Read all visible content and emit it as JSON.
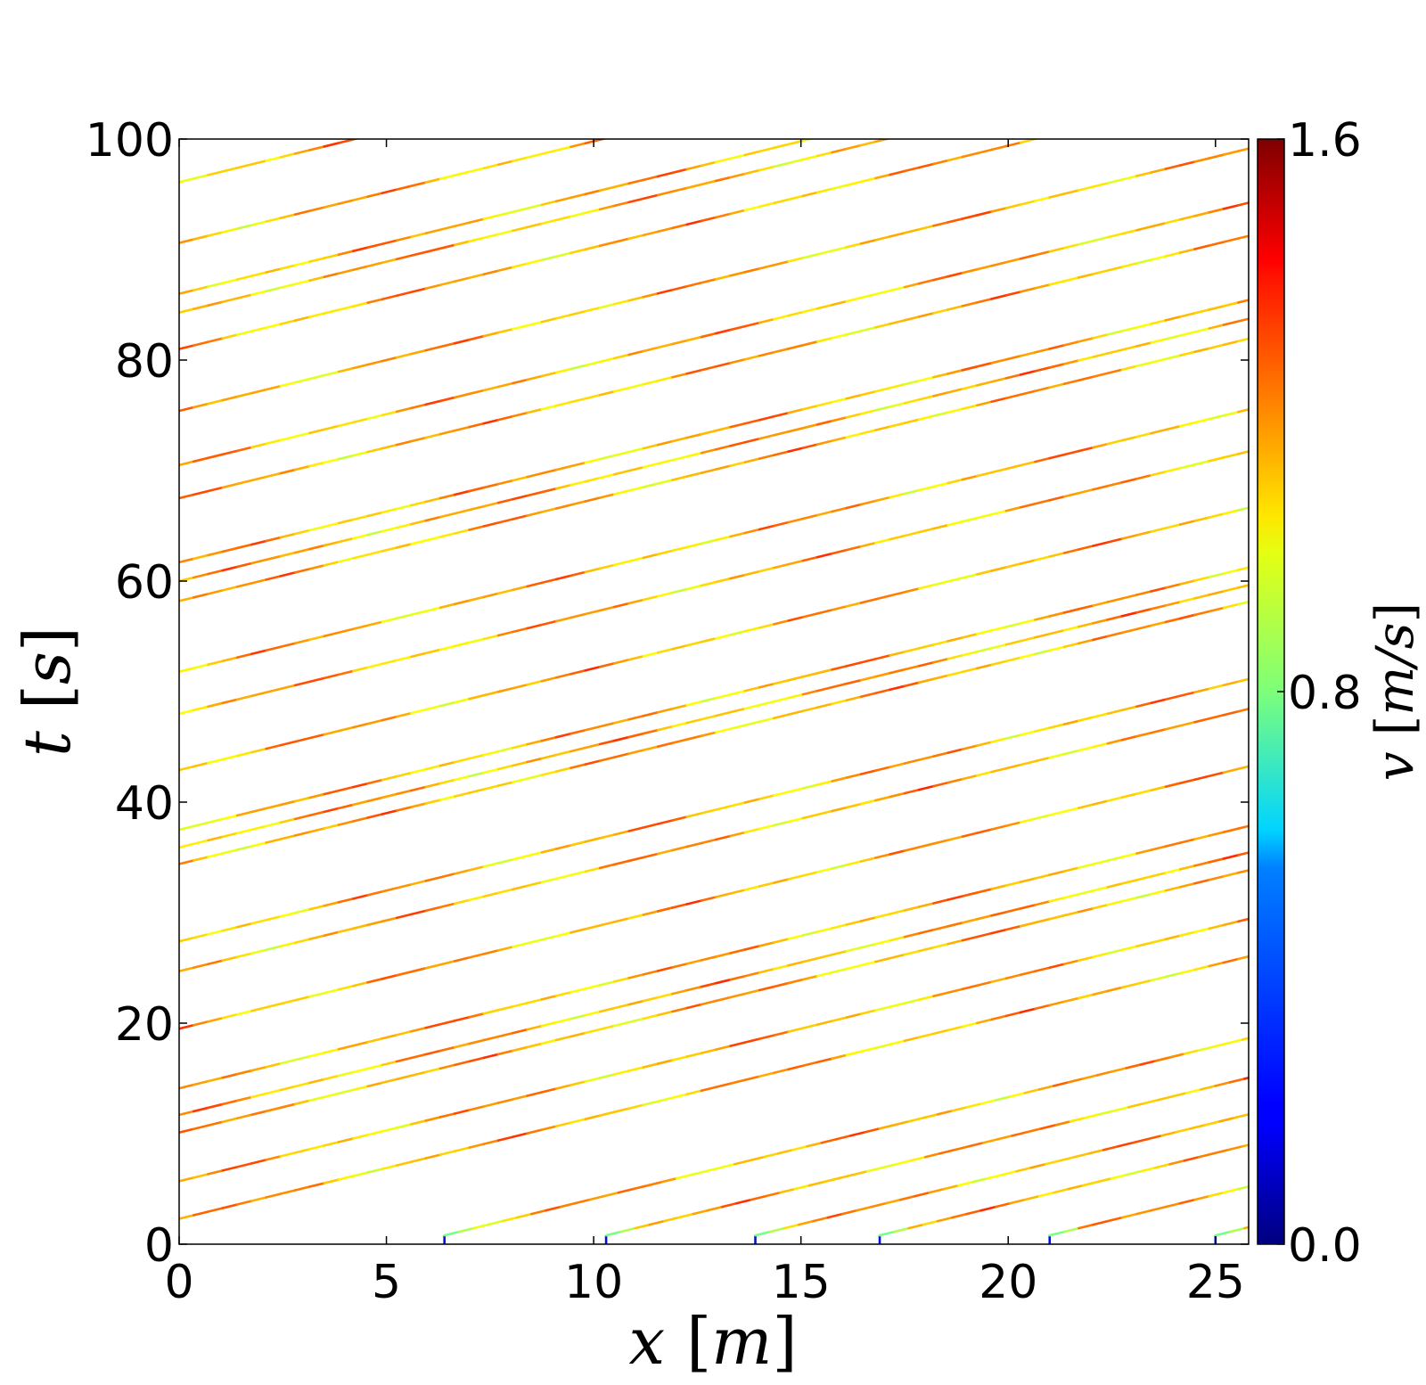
{
  "chart_data": {
    "type": "line",
    "title": "",
    "x_axis": {
      "var": "x",
      "unit": "m",
      "range": [
        0,
        25.8
      ],
      "ticks": [
        0,
        5,
        10,
        15,
        20,
        25
      ]
    },
    "y_axis": {
      "var": "t",
      "unit": "s",
      "range": [
        0,
        100
      ],
      "ticks": [
        0,
        20,
        40,
        60,
        80,
        100
      ]
    },
    "colorbar": {
      "var": "v",
      "unit": "m/s",
      "range": [
        0.0,
        1.6
      ],
      "tick_labels": [
        "0.0",
        "0.8",
        "1.6"
      ],
      "colormap": "jet"
    },
    "grid": false,
    "trajectory_slope_s_per_m": 0.92,
    "trajectories_start_t": [
      2.3,
      5.7,
      10.1,
      11.7,
      14.1,
      19.5,
      24.7,
      27.4,
      34.4,
      35.9,
      37.5,
      42.9,
      48.0,
      51.8,
      58.2,
      60.0,
      61.7,
      67.5,
      70.5,
      75.4,
      81.0,
      84.3,
      86.0,
      90.6,
      96.1
    ],
    "trajectories_start_x": [
      6.4,
      10.3,
      13.9,
      16.9,
      21.0,
      25.0
    ],
    "label_fragments": {
      "x_var": "x",
      "x_unit": "m",
      "y_var": "t",
      "y_unit": "s",
      "c_var": "v",
      "c_unit": "m/s",
      "lbr": "[",
      "rbr": "]"
    }
  }
}
